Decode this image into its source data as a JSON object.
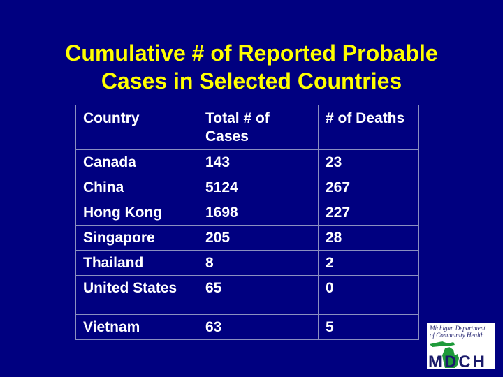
{
  "slide": {
    "title_line1": "Cumulative # of Reported Probable",
    "title_line2": "Cases in Selected Countries"
  },
  "table": {
    "headers": {
      "country": "Country",
      "cases_line1": "Total # of",
      "cases_line2": "Cases",
      "deaths": "# of Deaths"
    },
    "rows": [
      {
        "country": "Canada",
        "cases": "143",
        "deaths": "23"
      },
      {
        "country": "China",
        "cases": "5124",
        "deaths": "267"
      },
      {
        "country": "Hong Kong",
        "cases": "1698",
        "deaths": "227"
      },
      {
        "country": "Singapore",
        "cases": "205",
        "deaths": "28"
      },
      {
        "country": "Thailand",
        "cases": "8",
        "deaths": "2"
      },
      {
        "country": "United States",
        "cases": "65",
        "deaths": "0"
      },
      {
        "country": "Vietnam",
        "cases": "63",
        "deaths": "5"
      }
    ]
  },
  "logo": {
    "line1": "Michigan Department",
    "line2": "of Community Health",
    "letters": "MDCH"
  },
  "colors": {
    "background": "#000080",
    "title": "#ffff00",
    "text": "#ffffff",
    "logo_green": "#1e9a3a",
    "logo_navy": "#1a1a6a"
  }
}
